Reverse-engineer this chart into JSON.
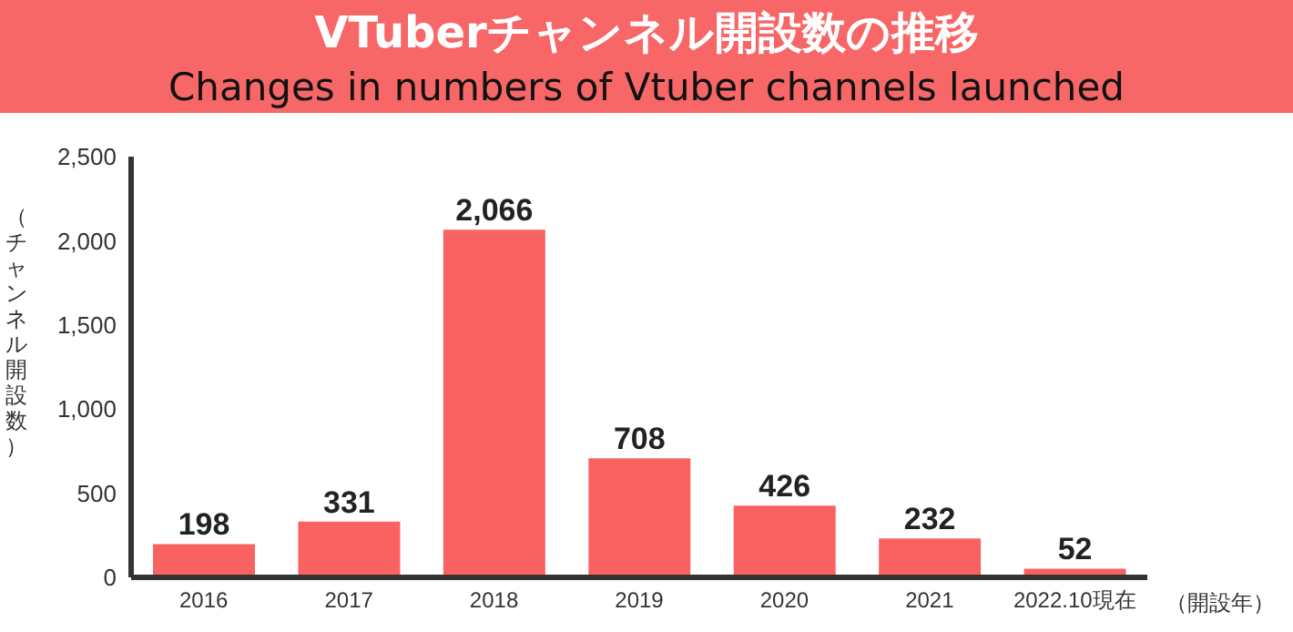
{
  "chart_data": {
    "type": "bar",
    "title": "VTuberチャンネル開設数の推移",
    "subtitle": "Changes in numbers of Vtuber channels launched",
    "ylabel": "（チャンネル開設数）",
    "xlabel": "（開設年）",
    "categories": [
      "2016",
      "2017",
      "2018",
      "2019",
      "2020",
      "2021",
      "2022.10現在"
    ],
    "values": [
      198,
      331,
      2066,
      708,
      426,
      232,
      52
    ],
    "value_labels": [
      "198",
      "331",
      "2,066",
      "708",
      "426",
      "232",
      "52"
    ],
    "color": "#fa6262",
    "ylim": [
      0,
      2500
    ],
    "yticks": [
      {
        "value": 0,
        "label": "0"
      },
      {
        "value": 500,
        "label": "500"
      },
      {
        "value": 1000,
        "label": "1,000"
      },
      {
        "value": 1500,
        "label": "1,500"
      },
      {
        "value": 2000,
        "label": "2,000"
      },
      {
        "value": 2500,
        "label": "2,500"
      }
    ],
    "grid": false,
    "legend": false
  }
}
